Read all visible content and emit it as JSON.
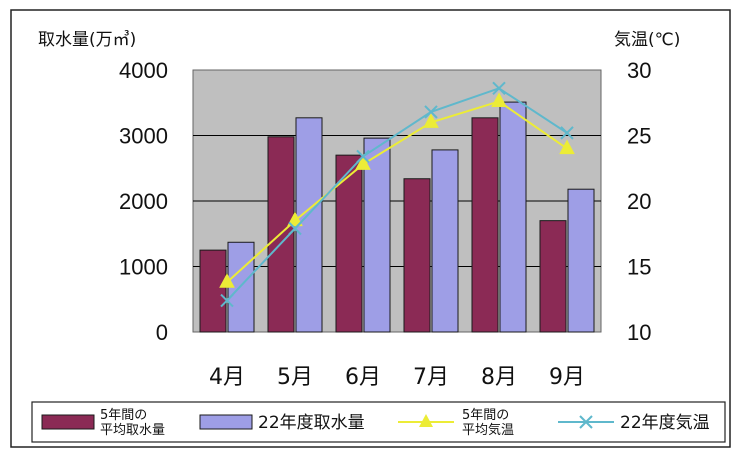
{
  "chart_data": {
    "type": "bar",
    "categories": [
      "4月",
      "5月",
      "6月",
      "7月",
      "8月",
      "9月"
    ],
    "y_left": {
      "label": "取水量(万㎥)",
      "ylim": [
        0,
        4000
      ],
      "ticks": [
        "0",
        "1000",
        "2000",
        "3000",
        "4000"
      ]
    },
    "y_right": {
      "label": "気温(℃)",
      "ylim": [
        10,
        30
      ],
      "ticks": [
        "10",
        "15",
        "20",
        "25",
        "30"
      ]
    },
    "bar_series": [
      {
        "name_lines": [
          "5年間の",
          "平均取水量"
        ],
        "values": [
          1250,
          2980,
          2700,
          2340,
          3270,
          1700
        ],
        "color": "#8b2a55"
      },
      {
        "name": "22年度取水量",
        "values": [
          1370,
          3270,
          2960,
          2780,
          3510,
          2180
        ],
        "color": "#9e9ee6"
      }
    ],
    "line_series": [
      {
        "name_lines": [
          "5年間の",
          "平均気温"
        ],
        "values": [
          13.8,
          18.5,
          22.8,
          26.0,
          27.6,
          24.0
        ],
        "color": "#ecec36",
        "marker": "triangle"
      },
      {
        "name": "22年度気温",
        "values": [
          12.4,
          17.9,
          23.4,
          26.8,
          28.6,
          25.2
        ],
        "color": "#5fb8cc",
        "marker": "x"
      }
    ],
    "grid": true,
    "legend": "bottom",
    "plot_background": "#bfbfbf"
  }
}
